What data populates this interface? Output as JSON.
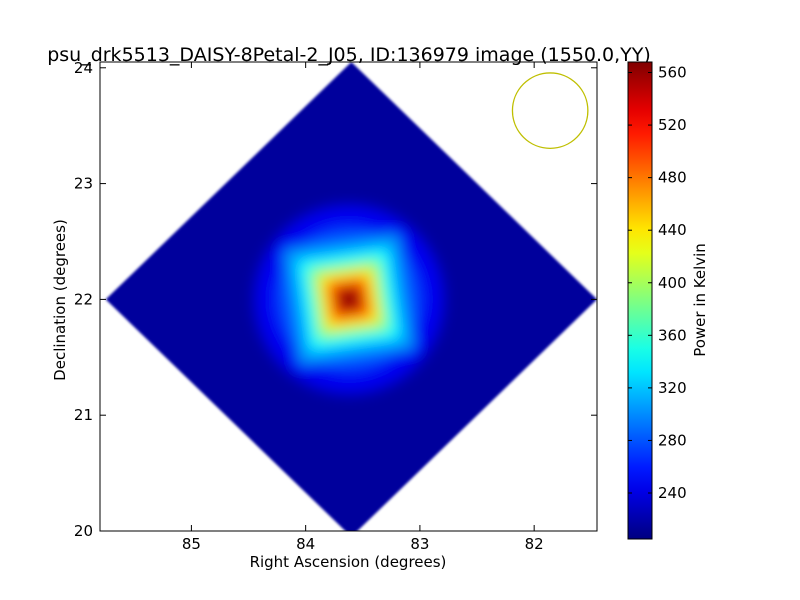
{
  "chart_data": {
    "type": "heatmap",
    "title": "psu_drk5513_DAISY-8Petal-2_J05, ID:136979 image (1550.0,YY)",
    "xlabel": "Right Ascension (degrees)",
    "ylabel": "Declination (degrees)",
    "xlim": [
      85.8,
      81.45
    ],
    "ylim": [
      20.0,
      24.05
    ],
    "x_ticks": [
      85,
      84,
      83,
      82
    ],
    "y_ticks": [
      20,
      21,
      22,
      23,
      24
    ],
    "grid": false,
    "map_region": {
      "shape": "diamond",
      "center_ra": 83.6,
      "center_dec": 22.0,
      "half_width_ra": 2.15,
      "half_width_dec": 2.05,
      "background_value": 215
    },
    "source": {
      "peak_ra": 83.62,
      "peak_dec": 22.0,
      "peak_value": 565,
      "halo_value": 340
    },
    "beam": {
      "ra": 81.86,
      "dec": 23.63,
      "radius_deg": 0.33,
      "color": "#bfbf00"
    },
    "colorbar": {
      "label": "Power in Kelvin",
      "min": 205,
      "max": 568,
      "ticks": [
        240,
        280,
        320,
        360,
        400,
        440,
        480,
        520,
        560
      ],
      "colormap": "jet"
    }
  }
}
